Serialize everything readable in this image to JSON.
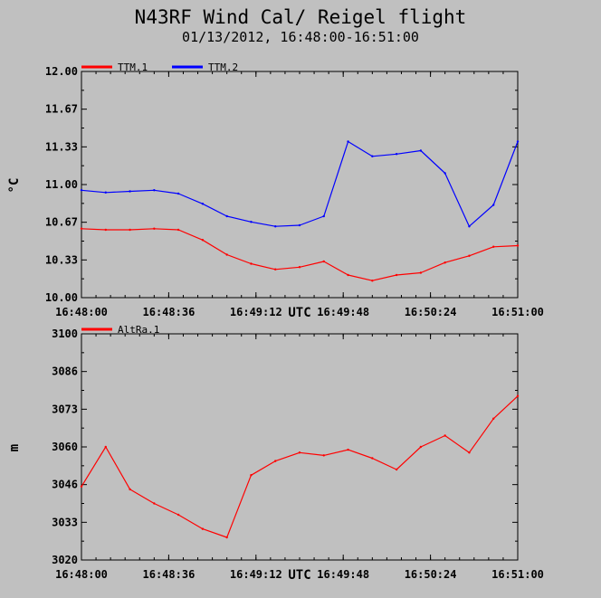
{
  "title": "N43RF Wind Cal/ Reigel flight",
  "subtitle": "01/13/2012, 16:48:00-16:51:00",
  "chart_data": [
    {
      "type": "line",
      "ylabel": "°C",
      "xlabel": "UTC",
      "ylim": [
        10.0,
        12.0
      ],
      "yticks": [
        "10.00",
        "10.33",
        "10.67",
        "11.00",
        "11.33",
        "11.67",
        "12.00"
      ],
      "xticks": [
        "16:48:00",
        "16:48:36",
        "16:49:12",
        "16:49:48",
        "16:50:24",
        "16:51:00"
      ],
      "legend_position": "top-left",
      "series": [
        {
          "name": "TTM.1",
          "color": "#ff0000",
          "t": [
            0,
            10,
            20,
            30,
            40,
            50,
            60,
            70,
            80,
            90,
            100,
            110,
            120,
            130,
            140,
            150,
            160,
            170,
            180
          ],
          "values": [
            10.61,
            10.6,
            10.6,
            10.61,
            10.6,
            10.51,
            10.38,
            10.3,
            10.25,
            10.27,
            10.32,
            10.2,
            10.15,
            10.2,
            10.22,
            10.31,
            10.37,
            10.45,
            10.46
          ]
        },
        {
          "name": "TTM.2",
          "color": "#0000ff",
          "t": [
            0,
            10,
            20,
            30,
            40,
            50,
            60,
            70,
            80,
            90,
            100,
            110,
            120,
            130,
            140,
            150,
            160,
            170,
            180
          ],
          "values": [
            10.95,
            10.93,
            10.94,
            10.95,
            10.92,
            10.83,
            10.72,
            10.67,
            10.63,
            10.64,
            10.72,
            11.38,
            11.25,
            11.27,
            11.3,
            11.1,
            10.63,
            10.82,
            11.38
          ]
        }
      ]
    },
    {
      "type": "line",
      "ylabel": "m",
      "xlabel": "UTC",
      "ylim": [
        3020,
        3100
      ],
      "yticks": [
        "3020",
        "3033",
        "3046",
        "3060",
        "3073",
        "3086",
        "3100"
      ],
      "xticks": [
        "16:48:00",
        "16:48:36",
        "16:49:12",
        "16:49:48",
        "16:50:24",
        "16:51:00"
      ],
      "legend_position": "top-left",
      "series": [
        {
          "name": "AltRa.1",
          "color": "#ff0000",
          "t": [
            0,
            10,
            20,
            30,
            40,
            50,
            60,
            70,
            80,
            90,
            100,
            110,
            120,
            130,
            140,
            150,
            160,
            170,
            180
          ],
          "values": [
            3046,
            3060,
            3045,
            3040,
            3036,
            3031,
            3028,
            3050,
            3055,
            3058,
            3057,
            3059,
            3056,
            3052,
            3060,
            3064,
            3058,
            3070,
            3078
          ]
        }
      ]
    }
  ]
}
